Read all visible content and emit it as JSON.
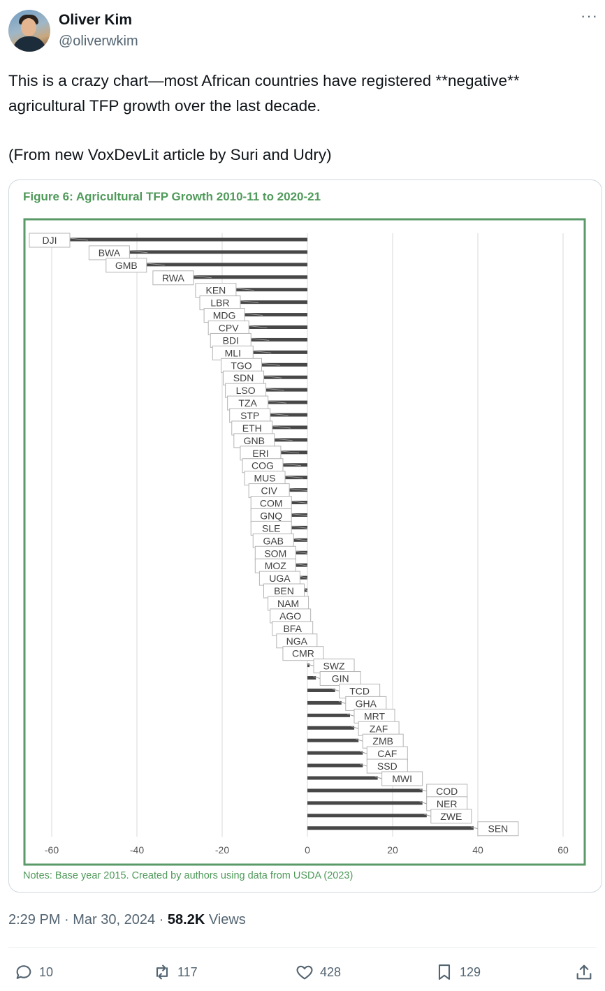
{
  "author": {
    "name": "Oliver Kim",
    "handle": "@oliverwkim"
  },
  "more_label": "···",
  "tweet": {
    "line1": "This is a crazy chart—most African countries have registered **negative** agricultural TFP growth over the last decade.",
    "line2": "(From new VoxDevLit article by Suri and Udry)"
  },
  "figure": {
    "title": "Figure 6: Agricultural TFP Growth 2010-11 to 2020-21",
    "notes": "Notes: Base year 2015. Created by authors using data from USDA (2023)",
    "frame_color": "#5a9a68",
    "bar_color": "#474747"
  },
  "chart_data": {
    "type": "bar",
    "orientation": "horizontal",
    "xlim": [
      -60,
      60
    ],
    "xticks": [
      "-60",
      "-40",
      "-20",
      "0",
      "20",
      "40",
      "60"
    ],
    "grid": "vertical",
    "categories": [
      "DJI",
      "BWA",
      "GMB",
      "RWA",
      "KEN",
      "LBR",
      "MDG",
      "CPV",
      "BDI",
      "MLI",
      "TGO",
      "SDN",
      "LSO",
      "TZA",
      "STP",
      "ETH",
      "GNB",
      "ERI",
      "COG",
      "MUS",
      "CIV",
      "COM",
      "GNQ",
      "SLE",
      "GAB",
      "SOM",
      "MOZ",
      "UGA",
      "BEN",
      "NAM",
      "AGO",
      "BFA",
      "NGA",
      "CMR",
      "SWZ",
      "GIN",
      "TCD",
      "GHA",
      "MRT",
      "ZAF",
      "ZMB",
      "CAF",
      "SSD",
      "MWI",
      "COD",
      "NER",
      "ZWE",
      "SEN"
    ],
    "values": [
      -60,
      -46,
      -42,
      -31,
      -21,
      -20,
      -19,
      -18,
      -17.5,
      -17,
      -15,
      -14.5,
      -14,
      -13.5,
      -13,
      -12.5,
      -12,
      -10.5,
      -10,
      -9.5,
      -8.5,
      -8,
      -8,
      -8,
      -7.5,
      -7,
      -7,
      -6,
      -5,
      -4,
      -3.5,
      -3,
      -2,
      -0.5,
      0.5,
      2,
      6.5,
      8,
      10,
      11,
      12,
      13,
      13,
      16.5,
      27,
      27,
      28,
      39
    ]
  },
  "timestamp": {
    "time": "2:29 PM · Mar 30, 2024 · ",
    "views_count": "58.2K",
    "views_label": " Views"
  },
  "actions": {
    "replies": "10",
    "reposts": "117",
    "likes": "428",
    "bookmarks": "129"
  }
}
